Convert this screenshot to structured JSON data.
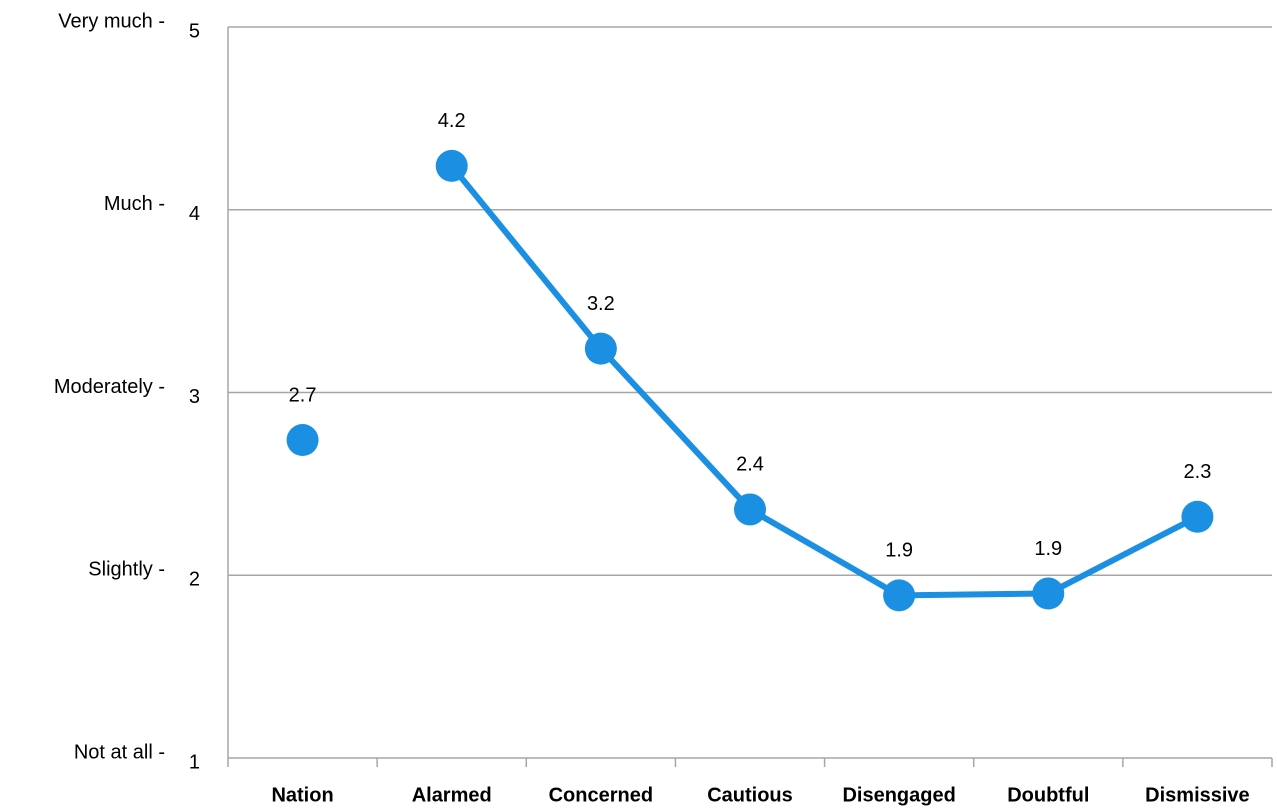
{
  "chart_data": {
    "type": "line",
    "categories": [
      "Nation",
      "Alarmed",
      "Concerned",
      "Cautious",
      "Disengaged",
      "Doubtful",
      "Dismissive"
    ],
    "series": [
      {
        "color": "#1b8fe2",
        "values": [
          2.74,
          null,
          null,
          null,
          null,
          null,
          null
        ],
        "value_labels": [
          "2.7",
          null,
          null,
          null,
          null,
          null,
          null
        ]
      },
      {
        "color": "#1b8fe2",
        "values": [
          null,
          4.24,
          3.24,
          2.36,
          1.89,
          1.9,
          2.32
        ],
        "value_labels": [
          null,
          "4.2",
          "3.2",
          "2.4",
          "1.9",
          "1.9",
          "2.3"
        ]
      }
    ],
    "ylim": [
      1,
      5
    ],
    "yticks": [
      1,
      2,
      3,
      4,
      5
    ],
    "y_scale_labels": [
      "Not at all -",
      "Slightly -",
      "Moderately -",
      "Much -",
      "Very  much -"
    ],
    "grid": true
  }
}
